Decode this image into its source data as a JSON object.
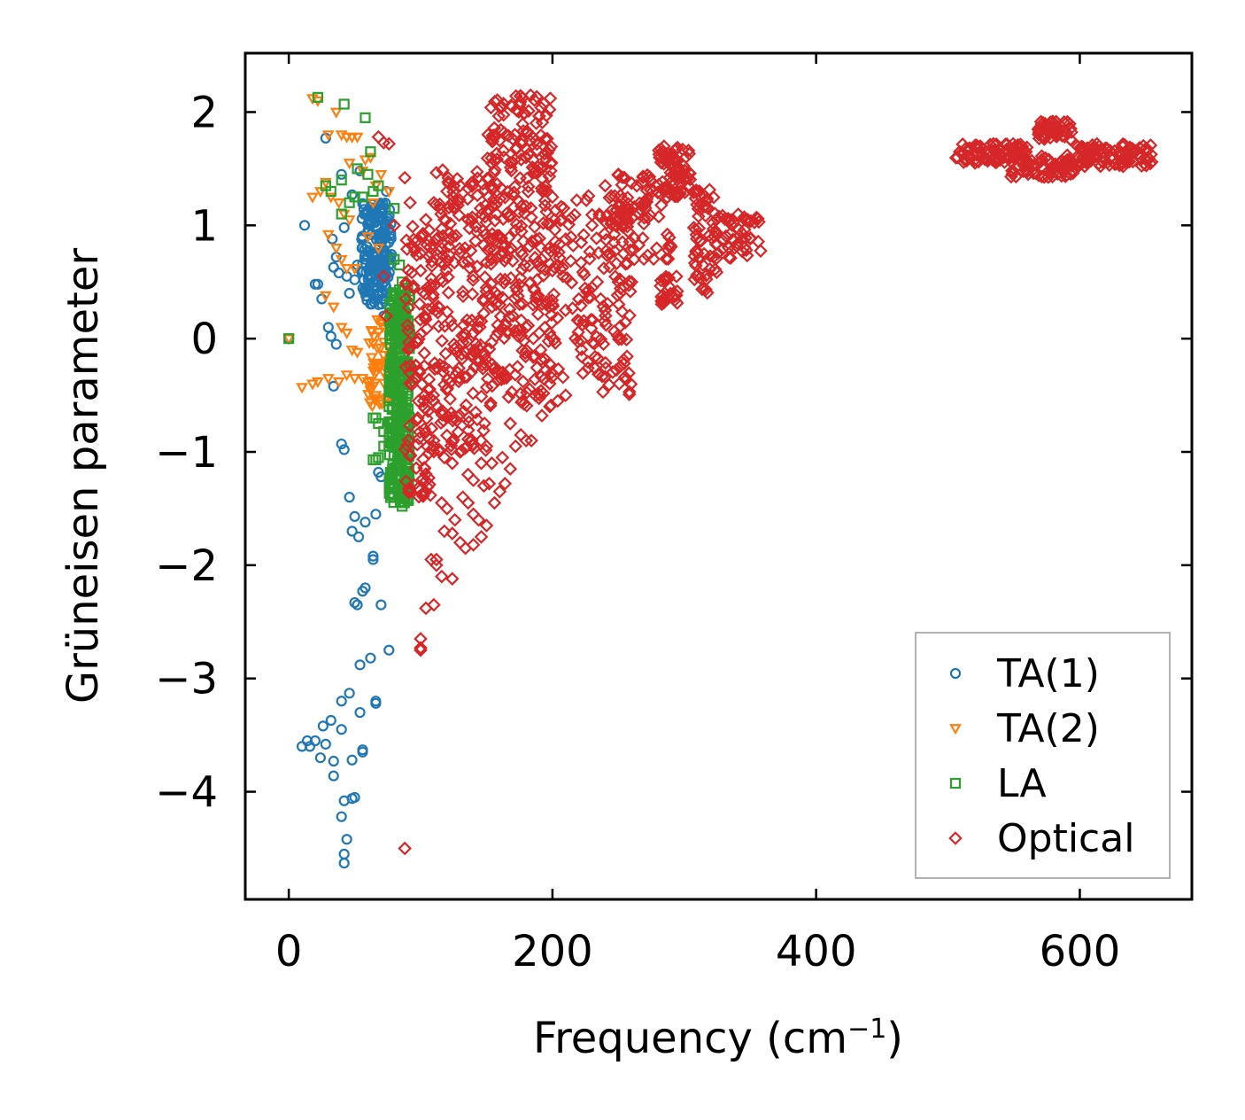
{
  "chart_data": {
    "type": "scatter",
    "xlabel": "Frequency (cm",
    "xlabel_sup": "−1",
    "xlabel_close": ")",
    "ylabel": "Grüneisen parameter",
    "xlim": [
      -33,
      685
    ],
    "ylim": [
      -4.95,
      2.52
    ],
    "x_ticks": [
      {
        "value": 0,
        "label": "0"
      },
      {
        "value": 200,
        "label": "200"
      },
      {
        "value": 400,
        "label": "400"
      },
      {
        "value": 600,
        "label": "600"
      }
    ],
    "y_ticks": [
      {
        "value": 2,
        "label": "2"
      },
      {
        "value": 1,
        "label": "1"
      },
      {
        "value": 0,
        "label": "0"
      },
      {
        "value": -1,
        "label": "−1"
      },
      {
        "value": -2,
        "label": "−2"
      },
      {
        "value": -3,
        "label": "−3"
      },
      {
        "value": -4,
        "label": "−4"
      }
    ],
    "legend_position": "bottom-right",
    "series": [
      {
        "name": "TA(1)",
        "marker": "circle",
        "color": "#1f77b4",
        "points": [
          [
            0,
            0
          ],
          [
            12,
            1.0
          ],
          [
            20,
            0.48
          ],
          [
            22,
            0.48
          ],
          [
            25,
            0.35
          ],
          [
            28,
            1.77
          ],
          [
            30,
            0.1
          ],
          [
            32,
            0.02
          ],
          [
            33,
            0.88
          ],
          [
            34,
            0.63
          ],
          [
            36,
            0.72
          ],
          [
            38,
            0.58
          ],
          [
            40,
            1.45
          ],
          [
            42,
            0.98
          ],
          [
            44,
            0.55
          ],
          [
            46,
            0.4
          ],
          [
            48,
            1.27
          ],
          [
            50,
            0.52
          ],
          [
            52,
            0.65
          ],
          [
            54,
            1.48
          ],
          [
            56,
            0.8
          ],
          [
            58,
            0.7
          ],
          [
            60,
            0.95
          ],
          [
            62,
            0.6
          ],
          [
            64,
            0.45
          ],
          [
            66,
            1.1
          ],
          [
            68,
            0.3
          ],
          [
            70,
            0.85
          ],
          [
            72,
            0.5
          ],
          [
            74,
            1.0
          ],
          [
            76,
            0.65
          ],
          [
            34,
            -0.42
          ],
          [
            36,
            -0.05
          ],
          [
            40,
            -0.93
          ],
          [
            42,
            -0.98
          ],
          [
            46,
            -1.4
          ],
          [
            50,
            -1.57
          ],
          [
            53,
            -1.75
          ],
          [
            48,
            -1.7
          ],
          [
            58,
            -1.62
          ],
          [
            66,
            -1.55
          ],
          [
            68,
            -1.18
          ],
          [
            64,
            -1.92
          ],
          [
            64,
            -1.95
          ],
          [
            58,
            -2.2
          ],
          [
            56,
            -2.23
          ],
          [
            50,
            -2.33
          ],
          [
            52,
            -2.35
          ],
          [
            70,
            -2.35
          ],
          [
            76,
            -2.75
          ],
          [
            54,
            -2.88
          ],
          [
            62,
            -2.82
          ],
          [
            40,
            -3.2
          ],
          [
            46,
            -3.13
          ],
          [
            54,
            -3.3
          ],
          [
            66,
            -3.22
          ],
          [
            66,
            -3.2
          ],
          [
            26,
            -3.42
          ],
          [
            32,
            -3.37
          ],
          [
            40,
            -3.45
          ],
          [
            10,
            -3.6
          ],
          [
            14,
            -3.55
          ],
          [
            16,
            -3.6
          ],
          [
            20,
            -3.55
          ],
          [
            24,
            -3.7
          ],
          [
            28,
            -3.58
          ],
          [
            34,
            -3.73
          ],
          [
            48,
            -3.72
          ],
          [
            56,
            -3.63
          ],
          [
            56,
            -3.65
          ],
          [
            34,
            -3.86
          ],
          [
            42,
            -4.08
          ],
          [
            48,
            -4.06
          ],
          [
            50,
            -4.05
          ],
          [
            40,
            -4.22
          ],
          [
            44,
            -4.42
          ],
          [
            42,
            -4.55
          ],
          [
            42,
            -4.63
          ],
          [
            70,
            -1.22
          ],
          [
            72,
            0.2
          ],
          [
            74,
            1.3
          ],
          [
            62,
            1.05
          ]
        ],
        "dense_regions": [
          {
            "x": [
              55,
              78
            ],
            "y": [
              0.3,
              1.2
            ],
            "count": 180
          }
        ]
      },
      {
        "name": "TA(2)",
        "marker": "triangle",
        "color": "#ff7f0e",
        "points": [
          [
            0,
            0
          ],
          [
            18,
            2.12
          ],
          [
            22,
            2.1
          ],
          [
            30,
            1.8
          ],
          [
            36,
            2.0
          ],
          [
            40,
            1.8
          ],
          [
            44,
            1.78
          ],
          [
            46,
            1.55
          ],
          [
            48,
            1.78
          ],
          [
            52,
            1.78
          ],
          [
            56,
            1.48
          ],
          [
            58,
            1.58
          ],
          [
            62,
            1.6
          ],
          [
            18,
            1.25
          ],
          [
            24,
            1.3
          ],
          [
            28,
            1.38
          ],
          [
            32,
            1.25
          ],
          [
            38,
            1.2
          ],
          [
            42,
            1.1
          ],
          [
            46,
            1.05
          ],
          [
            30,
            0.92
          ],
          [
            36,
            0.8
          ],
          [
            40,
            0.7
          ],
          [
            44,
            0.62
          ],
          [
            50,
            0.62
          ],
          [
            28,
            0.38
          ],
          [
            34,
            0.28
          ],
          [
            40,
            0.1
          ],
          [
            44,
            0.05
          ],
          [
            48,
            -0.1
          ],
          [
            52,
            -0.12
          ],
          [
            10,
            -0.43
          ],
          [
            18,
            -0.4
          ],
          [
            22,
            -0.38
          ],
          [
            30,
            -0.35
          ],
          [
            38,
            -0.38
          ],
          [
            44,
            -0.32
          ],
          [
            50,
            -0.35
          ],
          [
            56,
            -0.35
          ],
          [
            60,
            -0.38
          ],
          [
            64,
            -0.42
          ],
          [
            66,
            -0.5
          ],
          [
            70,
            -0.55
          ],
          [
            72,
            -0.3
          ],
          [
            74,
            -0.2
          ],
          [
            70,
            1.45
          ],
          [
            76,
            1.3
          ],
          [
            66,
            1.35
          ],
          [
            64,
            1.2
          ],
          [
            60,
            0.9
          ],
          [
            68,
            0.8
          ]
        ],
        "dense_regions": [
          {
            "x": [
              60,
              80
            ],
            "y": [
              -0.6,
              0.2
            ],
            "count": 60
          }
        ]
      },
      {
        "name": "LA",
        "marker": "square",
        "color": "#2ca02c",
        "points": [
          [
            0,
            0
          ],
          [
            22,
            2.13
          ],
          [
            42,
            2.07
          ],
          [
            58,
            1.95
          ],
          [
            62,
            1.65
          ],
          [
            28,
            1.35
          ],
          [
            32,
            1.3
          ],
          [
            40,
            1.4
          ],
          [
            46,
            1.2
          ],
          [
            50,
            1.25
          ],
          [
            56,
            1.25
          ],
          [
            52,
            1.5
          ],
          [
            60,
            1.45
          ],
          [
            64,
            1.3
          ],
          [
            68,
            1.35
          ],
          [
            40,
            1.1
          ],
          [
            80,
            1.15
          ],
          [
            84,
            0.65
          ],
          [
            86,
            0.5
          ],
          [
            80,
            0.7
          ],
          [
            64,
            -0.7
          ],
          [
            66,
            -0.7
          ],
          [
            68,
            -0.75
          ],
          [
            72,
            -0.82
          ],
          [
            76,
            -0.6
          ],
          [
            64,
            -1.07
          ],
          [
            66,
            -1.07
          ],
          [
            68,
            -1.05
          ],
          [
            72,
            -0.95
          ],
          [
            76,
            -0.95
          ],
          [
            86,
            -1.48
          ]
        ],
        "dense_regions": [
          {
            "x": [
              76,
              92
            ],
            "y": [
              -1.45,
              0.45
            ],
            "count": 340
          }
        ]
      },
      {
        "name": "Optical",
        "marker": "diamond",
        "color": "#d62728",
        "points": [
          [
            68,
            1.78
          ],
          [
            72,
            1.73
          ],
          [
            76,
            1.72
          ],
          [
            88,
            1.42
          ],
          [
            72,
            0.55
          ],
          [
            74,
            0.2
          ],
          [
            80,
            1.0
          ],
          [
            92,
            1.2
          ],
          [
            96,
            0.85
          ],
          [
            100,
            0.9
          ],
          [
            104,
            1.05
          ],
          [
            110,
            1.2
          ],
          [
            120,
            1.3
          ],
          [
            88,
            -4.5
          ],
          [
            100,
            -2.65
          ],
          [
            100,
            -2.73
          ],
          [
            104,
            -2.38
          ],
          [
            110,
            -2.35
          ],
          [
            100,
            -2.75
          ],
          [
            108,
            -1.95
          ],
          [
            112,
            -2.0
          ],
          [
            116,
            -2.1
          ],
          [
            124,
            -2.12
          ],
          [
            112,
            -1.95
          ],
          [
            118,
            -1.7
          ],
          [
            124,
            -1.72
          ],
          [
            130,
            -1.8
          ],
          [
            134,
            -1.85
          ],
          [
            140,
            -1.82
          ],
          [
            146,
            -1.75
          ],
          [
            150,
            -1.65
          ],
          [
            116,
            -1.45
          ],
          [
            120,
            -1.5
          ],
          [
            126,
            -1.6
          ],
          [
            132,
            -1.4
          ],
          [
            136,
            -1.45
          ],
          [
            140,
            -1.55
          ],
          [
            144,
            -1.6
          ],
          [
            148,
            -1.3
          ],
          [
            152,
            -1.28
          ],
          [
            156,
            -1.45
          ],
          [
            160,
            -1.35
          ],
          [
            164,
            -1.28
          ],
          [
            168,
            -1.15
          ],
          [
            172,
            -0.95
          ],
          [
            176,
            -0.85
          ],
          [
            180,
            -0.9
          ],
          [
            184,
            -0.9
          ],
          [
            192,
            -0.68
          ],
          [
            198,
            -0.6
          ],
          [
            204,
            -0.55
          ],
          [
            210,
            -0.5
          ],
          [
            110,
            -0.9
          ],
          [
            114,
            -0.98
          ],
          [
            118,
            -1.05
          ],
          [
            124,
            -1.1
          ],
          [
            130,
            -1.0
          ],
          [
            136,
            -1.2
          ],
          [
            140,
            -1.25
          ],
          [
            146,
            -1.1
          ],
          [
            150,
            -0.95
          ],
          [
            154,
            -1.1
          ],
          [
            162,
            -1.05
          ],
          [
            168,
            -0.75
          ],
          [
            100,
            0.6
          ],
          [
            108,
            0.75
          ],
          [
            114,
            0.9
          ],
          [
            118,
            1.05
          ],
          [
            124,
            1.2
          ],
          [
            130,
            1.35
          ],
          [
            140,
            0.55
          ],
          [
            150,
            0.45
          ],
          [
            160,
            0.3
          ],
          [
            170,
            0.2
          ],
          [
            180,
            0.1
          ],
          [
            190,
            0.05
          ],
          [
            200,
            0.3
          ],
          [
            210,
            0.25
          ],
          [
            220,
            0.35
          ],
          [
            230,
            0.45
          ],
          [
            240,
            0.25
          ],
          [
            250,
            0.5
          ],
          [
            260,
            0.5
          ],
          [
            200,
            0.6
          ],
          [
            204,
            0.65
          ],
          [
            208,
            0.55
          ],
          [
            230,
            1.0
          ],
          [
            240,
            1.35
          ],
          [
            250,
            1.45
          ],
          [
            256,
            1.1
          ],
          [
            262,
            0.7
          ],
          [
            270,
            1.2
          ],
          [
            276,
            1.3
          ],
          [
            180,
            1.6
          ],
          [
            186,
            1.5
          ],
          [
            196,
            1.3
          ],
          [
            200,
            1.25
          ]
        ],
        "dense_regions": [
          {
            "x": [
              88,
              110
            ],
            "y": [
              -1.4,
              1.0
            ],
            "count": 120
          },
          {
            "x": [
              110,
              150
            ],
            "y": [
              -1.0,
              1.5
            ],
            "count": 200
          },
          {
            "x": [
              150,
              200
            ],
            "y": [
              -0.6,
              2.15
            ],
            "count": 320
          },
          {
            "x": [
              200,
              260
            ],
            "y": [
              -0.5,
              1.3
            ],
            "count": 150
          },
          {
            "x": [
              240,
              290
            ],
            "y": [
              0.7,
              1.45
            ],
            "count": 80
          },
          {
            "x": [
              280,
              305
            ],
            "y": [
              1.25,
              1.7
            ],
            "count": 70
          },
          {
            "x": [
              282,
              296
            ],
            "y": [
              0.3,
              0.55
            ],
            "count": 25
          },
          {
            "x": [
              306,
              325
            ],
            "y": [
              0.4,
              1.35
            ],
            "count": 60
          },
          {
            "x": [
              322,
              358
            ],
            "y": [
              0.7,
              1.1
            ],
            "count": 50
          },
          {
            "x": [
              506,
              560
            ],
            "y": [
              1.55,
              1.72
            ],
            "count": 90
          },
          {
            "x": [
              545,
              595
            ],
            "y": [
              1.42,
              1.62
            ],
            "count": 70
          },
          {
            "x": [
              568,
              595
            ],
            "y": [
              1.75,
              1.92
            ],
            "count": 50
          },
          {
            "x": [
              598,
              655
            ],
            "y": [
              1.52,
              1.72
            ],
            "count": 100
          }
        ]
      }
    ]
  }
}
